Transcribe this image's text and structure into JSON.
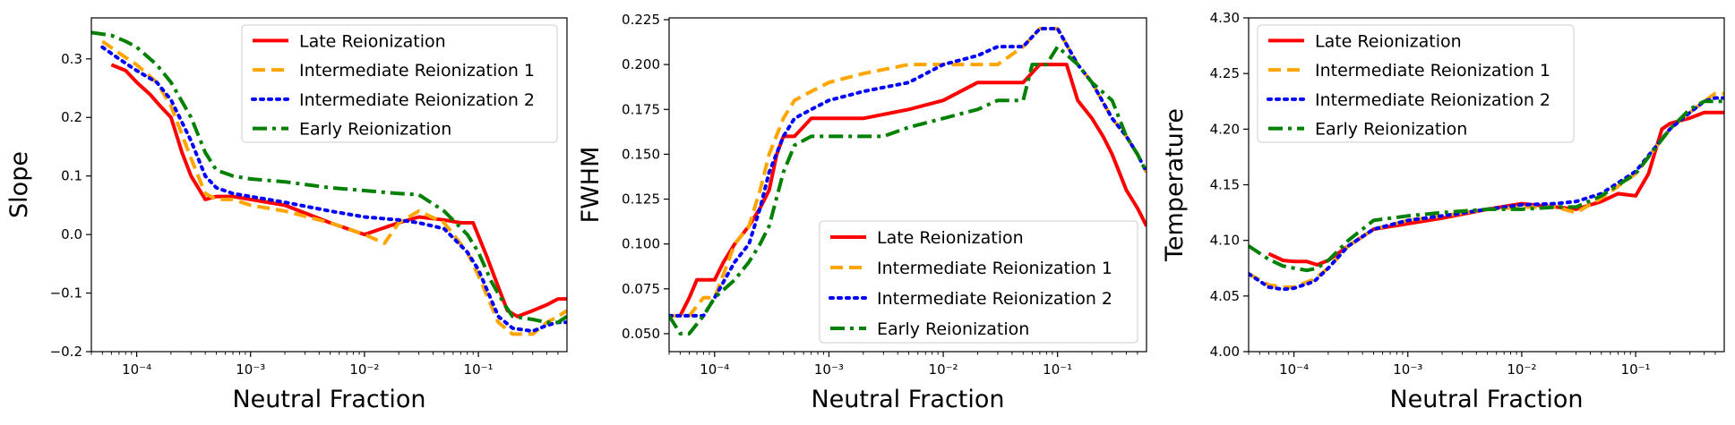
{
  "colors": {
    "late": "#ff0000",
    "int1": "#ffa500",
    "int2": "#0000ff",
    "early": "#008000"
  },
  "chart_data": [
    {
      "type": "line",
      "xscale": "log",
      "xlabel": "Neutral Fraction",
      "ylabel": "Slope",
      "xlim": [
        4e-05,
        0.6
      ],
      "ylim": [
        -0.2,
        0.37
      ],
      "yticks": [
        -0.2,
        -0.1,
        0.0,
        0.1,
        0.2,
        0.3
      ],
      "ytick_labels": [
        "−0.2",
        "−0.1",
        "0.0",
        "0.1",
        "0.2",
        "0.3"
      ],
      "xticks": [
        0.0001,
        0.001,
        0.01,
        0.1
      ],
      "xtick_labels": [
        "10⁻⁴",
        "10⁻³",
        "10⁻²",
        "10⁻¹"
      ],
      "legend_location": "top-right",
      "series": [
        {
          "name": "Late Reionization",
          "style": "solid",
          "color_key": "late",
          "x": [
            6e-05,
            8e-05,
            0.0001,
            0.00013,
            0.00016,
            0.0002,
            0.00025,
            0.0003,
            0.0004,
            0.0005,
            0.0007,
            0.001,
            0.002,
            0.005,
            0.01,
            0.02,
            0.03,
            0.05,
            0.07,
            0.09,
            0.12,
            0.15,
            0.18,
            0.22,
            0.3,
            0.4,
            0.5,
            0.6
          ],
          "y": [
            0.29,
            0.28,
            0.26,
            0.24,
            0.22,
            0.2,
            0.14,
            0.1,
            0.06,
            0.065,
            0.065,
            0.06,
            0.05,
            0.02,
            0.0,
            0.02,
            0.03,
            0.025,
            0.02,
            0.02,
            -0.04,
            -0.09,
            -0.13,
            -0.14,
            -0.13,
            -0.12,
            -0.11,
            -0.11
          ]
        },
        {
          "name": "Intermediate Reionization 1",
          "style": "dashed",
          "color_key": "int1",
          "x": [
            5e-05,
            7e-05,
            0.0001,
            0.00015,
            0.0002,
            0.0003,
            0.0004,
            0.0005,
            0.0007,
            0.001,
            0.002,
            0.005,
            0.01,
            0.015,
            0.02,
            0.03,
            0.05,
            0.08,
            0.1,
            0.15,
            0.2,
            0.3,
            0.4,
            0.5,
            0.6
          ],
          "y": [
            0.33,
            0.31,
            0.29,
            0.26,
            0.22,
            0.13,
            0.07,
            0.06,
            0.06,
            0.05,
            0.04,
            0.02,
            0.0,
            -0.015,
            0.02,
            0.04,
            0.02,
            -0.03,
            -0.07,
            -0.15,
            -0.17,
            -0.17,
            -0.15,
            -0.14,
            -0.13
          ]
        },
        {
          "name": "Intermediate Reionization 2",
          "style": "dotted",
          "color_key": "int2",
          "x": [
            5e-05,
            7e-05,
            0.0001,
            0.00015,
            0.0002,
            0.0003,
            0.0004,
            0.0005,
            0.0007,
            0.001,
            0.002,
            0.005,
            0.01,
            0.02,
            0.03,
            0.05,
            0.08,
            0.1,
            0.15,
            0.2,
            0.3,
            0.4,
            0.5,
            0.6
          ],
          "y": [
            0.32,
            0.3,
            0.28,
            0.26,
            0.23,
            0.16,
            0.1,
            0.08,
            0.07,
            0.065,
            0.055,
            0.04,
            0.03,
            0.025,
            0.02,
            0.01,
            -0.03,
            -0.06,
            -0.14,
            -0.16,
            -0.165,
            -0.155,
            -0.15,
            -0.15
          ]
        },
        {
          "name": "Early Reionization",
          "style": "dashdot",
          "color_key": "early",
          "x": [
            4e-05,
            6e-05,
            8e-05,
            0.0001,
            0.00015,
            0.0002,
            0.0003,
            0.0004,
            0.0005,
            0.0007,
            0.001,
            0.002,
            0.005,
            0.01,
            0.02,
            0.03,
            0.05,
            0.08,
            0.1,
            0.13,
            0.17,
            0.2,
            0.3,
            0.4,
            0.5,
            0.6
          ],
          "y": [
            0.345,
            0.34,
            0.33,
            0.32,
            0.29,
            0.26,
            0.2,
            0.14,
            0.11,
            0.1,
            0.095,
            0.09,
            0.08,
            0.075,
            0.07,
            0.068,
            0.04,
            0.0,
            -0.03,
            -0.08,
            -0.12,
            -0.14,
            -0.145,
            -0.15,
            -0.15,
            -0.14
          ]
        }
      ]
    },
    {
      "type": "line",
      "xscale": "log",
      "xlabel": "Neutral Fraction",
      "ylabel": "FWHM",
      "xlim": [
        4e-05,
        0.6
      ],
      "ylim": [
        0.04,
        0.226
      ],
      "yticks": [
        0.05,
        0.075,
        0.1,
        0.125,
        0.15,
        0.175,
        0.2,
        0.225
      ],
      "ytick_labels": [
        "0.050",
        "0.075",
        "0.100",
        "0.125",
        "0.150",
        "0.175",
        "0.200",
        "0.225"
      ],
      "xticks": [
        0.0001,
        0.001,
        0.01,
        0.1
      ],
      "xtick_labels": [
        "10⁻⁴",
        "10⁻³",
        "10⁻²",
        "10⁻¹"
      ],
      "legend_location": "lower-right",
      "series": [
        {
          "name": "Late Reionization",
          "style": "solid",
          "color_key": "late",
          "x": [
            5e-05,
            6e-05,
            7e-05,
            8e-05,
            0.0001,
            0.00012,
            0.00015,
            0.0002,
            0.00025,
            0.0003,
            0.00035,
            0.0004,
            0.0005,
            0.0007,
            0.001,
            0.002,
            0.005,
            0.01,
            0.02,
            0.03,
            0.05,
            0.07,
            0.1,
            0.12,
            0.15,
            0.2,
            0.25,
            0.3,
            0.4,
            0.5,
            0.6
          ],
          "y": [
            0.06,
            0.07,
            0.08,
            0.08,
            0.08,
            0.09,
            0.1,
            0.11,
            0.12,
            0.13,
            0.15,
            0.16,
            0.16,
            0.17,
            0.17,
            0.17,
            0.175,
            0.18,
            0.19,
            0.19,
            0.19,
            0.2,
            0.2,
            0.2,
            0.18,
            0.17,
            0.16,
            0.15,
            0.13,
            0.12,
            0.11
          ]
        },
        {
          "name": "Intermediate Reionization 1",
          "style": "dashed",
          "color_key": "int1",
          "x": [
            4e-05,
            6e-05,
            8e-05,
            0.0001,
            0.00015,
            0.0002,
            0.00025,
            0.0003,
            0.0004,
            0.0005,
            0.0007,
            0.001,
            0.002,
            0.005,
            0.01,
            0.02,
            0.03,
            0.05,
            0.07,
            0.1,
            0.15,
            0.2,
            0.3,
            0.4,
            0.5,
            0.6
          ],
          "y": [
            0.06,
            0.06,
            0.07,
            0.07,
            0.1,
            0.11,
            0.13,
            0.15,
            0.17,
            0.18,
            0.185,
            0.19,
            0.195,
            0.2,
            0.2,
            0.2,
            0.2,
            0.21,
            0.22,
            0.22,
            0.2,
            0.19,
            0.17,
            0.16,
            0.15,
            0.14
          ]
        },
        {
          "name": "Intermediate Reionization 2",
          "style": "dotted",
          "color_key": "int2",
          "x": [
            4e-05,
            6e-05,
            8e-05,
            0.0001,
            0.00015,
            0.0002,
            0.00025,
            0.0003,
            0.0004,
            0.0005,
            0.0007,
            0.001,
            0.002,
            0.005,
            0.01,
            0.02,
            0.03,
            0.05,
            0.07,
            0.1,
            0.15,
            0.2,
            0.3,
            0.4,
            0.5,
            0.6
          ],
          "y": [
            0.06,
            0.06,
            0.06,
            0.07,
            0.09,
            0.1,
            0.12,
            0.14,
            0.16,
            0.17,
            0.175,
            0.18,
            0.185,
            0.19,
            0.2,
            0.205,
            0.21,
            0.21,
            0.22,
            0.22,
            0.2,
            0.19,
            0.17,
            0.16,
            0.15,
            0.14
          ]
        },
        {
          "name": "Early Reionization",
          "style": "dashdot",
          "color_key": "early",
          "x": [
            4e-05,
            5e-05,
            6e-05,
            8e-05,
            0.0001,
            0.00015,
            0.0002,
            0.00025,
            0.0003,
            0.0004,
            0.0005,
            0.0007,
            0.001,
            0.002,
            0.003,
            0.005,
            0.01,
            0.02,
            0.03,
            0.05,
            0.06,
            0.08,
            0.1,
            0.15,
            0.2,
            0.3,
            0.4,
            0.5,
            0.6
          ],
          "y": [
            0.06,
            0.05,
            0.05,
            0.06,
            0.07,
            0.08,
            0.09,
            0.1,
            0.11,
            0.14,
            0.155,
            0.16,
            0.16,
            0.16,
            0.16,
            0.165,
            0.17,
            0.175,
            0.18,
            0.18,
            0.2,
            0.2,
            0.21,
            0.2,
            0.19,
            0.18,
            0.16,
            0.15,
            0.14
          ]
        }
      ]
    },
    {
      "type": "line",
      "xscale": "log",
      "xlabel": "Neutral Fraction",
      "ylabel": "Temperature",
      "xlim": [
        4e-05,
        0.6
      ],
      "ylim": [
        4.0,
        4.3
      ],
      "yticks": [
        4.0,
        4.05,
        4.1,
        4.15,
        4.2,
        4.25,
        4.3
      ],
      "ytick_labels": [
        "4.00",
        "4.05",
        "4.10",
        "4.15",
        "4.20",
        "4.25",
        "4.30"
      ],
      "xticks": [
        0.0001,
        0.001,
        0.01,
        0.1
      ],
      "xtick_labels": [
        "10⁻⁴",
        "10⁻³",
        "10⁻²",
        "10⁻¹"
      ],
      "legend_location": "top-left",
      "series": [
        {
          "name": "Late Reionization",
          "style": "solid",
          "color_key": "late",
          "x": [
            6e-05,
            8e-05,
            0.0001,
            0.00013,
            0.00016,
            0.0002,
            0.0003,
            0.0005,
            0.001,
            0.002,
            0.005,
            0.01,
            0.02,
            0.03,
            0.05,
            0.07,
            0.1,
            0.13,
            0.17,
            0.2,
            0.3,
            0.4,
            0.5,
            0.6
          ],
          "y": [
            4.088,
            4.082,
            4.081,
            4.081,
            4.078,
            4.082,
            4.095,
            4.11,
            4.115,
            4.12,
            4.128,
            4.133,
            4.13,
            4.128,
            4.135,
            4.142,
            4.14,
            4.16,
            4.2,
            4.205,
            4.21,
            4.215,
            4.215,
            4.215
          ]
        },
        {
          "name": "Intermediate Reionization 1",
          "style": "dashed",
          "color_key": "int1",
          "x": [
            4e-05,
            6e-05,
            8e-05,
            0.0001,
            0.00015,
            0.0002,
            0.0003,
            0.0005,
            0.001,
            0.002,
            0.005,
            0.01,
            0.02,
            0.03,
            0.05,
            0.1,
            0.2,
            0.3,
            0.4,
            0.5,
            0.6
          ],
          "y": [
            4.07,
            4.06,
            4.058,
            4.058,
            4.065,
            4.075,
            4.095,
            4.11,
            4.118,
            4.122,
            4.128,
            4.13,
            4.13,
            4.125,
            4.138,
            4.16,
            4.2,
            4.215,
            4.225,
            4.232,
            4.232
          ]
        },
        {
          "name": "Intermediate Reionization 2",
          "style": "dotted",
          "color_key": "int2",
          "x": [
            4e-05,
            6e-05,
            8e-05,
            0.0001,
            0.00015,
            0.0002,
            0.0003,
            0.0005,
            0.001,
            0.002,
            0.005,
            0.01,
            0.02,
            0.03,
            0.05,
            0.1,
            0.2,
            0.3,
            0.4,
            0.5,
            0.6
          ],
          "y": [
            4.07,
            4.058,
            4.056,
            4.057,
            4.063,
            4.075,
            4.095,
            4.11,
            4.118,
            4.122,
            4.128,
            4.132,
            4.133,
            4.135,
            4.142,
            4.162,
            4.2,
            4.215,
            4.225,
            4.228,
            4.228
          ]
        },
        {
          "name": "Early Reionization",
          "style": "dashdot",
          "color_key": "early",
          "x": [
            4e-05,
            6e-05,
            8e-05,
            0.0001,
            0.00013,
            0.00016,
            0.0002,
            0.0003,
            0.0005,
            0.001,
            0.002,
            0.005,
            0.01,
            0.02,
            0.03,
            0.05,
            0.1,
            0.2,
            0.3,
            0.4,
            0.5,
            0.6
          ],
          "y": [
            4.095,
            4.083,
            4.077,
            4.075,
            4.073,
            4.075,
            4.082,
            4.1,
            4.118,
            4.122,
            4.125,
            4.128,
            4.128,
            4.13,
            4.13,
            4.14,
            4.16,
            4.2,
            4.218,
            4.225,
            4.225,
            4.225
          ]
        }
      ]
    }
  ]
}
